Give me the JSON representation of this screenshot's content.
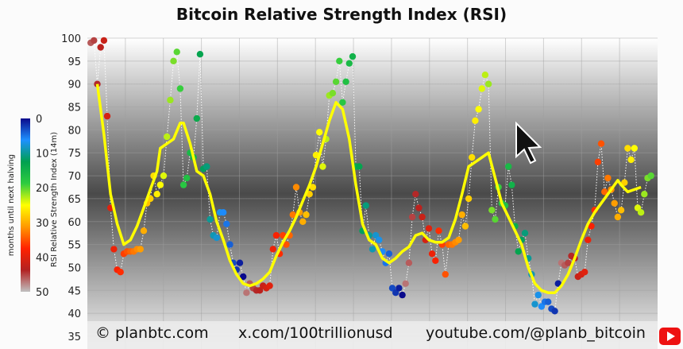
{
  "chart_data": {
    "type": "scatter",
    "title": "Bitcoin Relative Strength Index (RSI)",
    "ylabel": "RSI Relative Strength Index (14m)",
    "ylim": [
      35,
      100
    ],
    "yticks": [
      35,
      40,
      45,
      50,
      55,
      60,
      65,
      70,
      75,
      80,
      85,
      90,
      95,
      100
    ],
    "colorbar": {
      "label": "months until next halving",
      "ticks": [
        0,
        10,
        20,
        30,
        40,
        50
      ],
      "range": [
        0,
        50
      ],
      "colors": [
        "#0a0a8c",
        "#1e90ff",
        "#00a050",
        "#2ecc40",
        "#ffff00",
        "#ff9900",
        "#ff2200",
        "#b22222",
        "#c0c0c0"
      ]
    },
    "series": [
      {
        "kind": "points",
        "points": [
          [
            1,
            99,
            46
          ],
          [
            2,
            99.5,
            45
          ],
          [
            3,
            90,
            44
          ],
          [
            4,
            98,
            43
          ],
          [
            5,
            99.5,
            42
          ],
          [
            6,
            83,
            41
          ],
          [
            7,
            63,
            40
          ],
          [
            8,
            54,
            39
          ],
          [
            9,
            49.5,
            38
          ],
          [
            10,
            49,
            37
          ],
          [
            11,
            53,
            36
          ],
          [
            12,
            53.5,
            35
          ],
          [
            13,
            53.5,
            34
          ],
          [
            14,
            53.5,
            33
          ],
          [
            15,
            54,
            32
          ],
          [
            16,
            54,
            31
          ],
          [
            17,
            58,
            30
          ],
          [
            18,
            64,
            29
          ],
          [
            19,
            65,
            28
          ],
          [
            20,
            70,
            27
          ],
          [
            21,
            66,
            26
          ],
          [
            22,
            68,
            25
          ],
          [
            23,
            70,
            24
          ],
          [
            24,
            78.5,
            23
          ],
          [
            25,
            86.5,
            22
          ],
          [
            26,
            95,
            21
          ],
          [
            27,
            97,
            20
          ],
          [
            28,
            89,
            19
          ],
          [
            29,
            68,
            18
          ],
          [
            30,
            69.5,
            17
          ],
          [
            31,
            75,
            16
          ],
          [
            32,
            74,
            15
          ],
          [
            33,
            82.5,
            14
          ],
          [
            34,
            96.5,
            13
          ],
          [
            35,
            71.5,
            12
          ],
          [
            36,
            72,
            11
          ],
          [
            37,
            60.5,
            10
          ],
          [
            38,
            57,
            9
          ],
          [
            39,
            56.5,
            8
          ],
          [
            40,
            62,
            7
          ],
          [
            41,
            62,
            6
          ],
          [
            42,
            59.5,
            5
          ],
          [
            43,
            55,
            4
          ],
          [
            44,
            51,
            3
          ],
          [
            45,
            49.5,
            2
          ],
          [
            46,
            51,
            1
          ],
          [
            47,
            48,
            0
          ],
          [
            48,
            44.5,
            47
          ],
          [
            49,
            46.5,
            46
          ],
          [
            50,
            45.5,
            45
          ],
          [
            51,
            45,
            44
          ],
          [
            52,
            45,
            43
          ],
          [
            53,
            46,
            42
          ],
          [
            54,
            45.5,
            41
          ],
          [
            55,
            46,
            40
          ],
          [
            56,
            54,
            39
          ],
          [
            57,
            57,
            38
          ],
          [
            58,
            53,
            37
          ],
          [
            59,
            57,
            36
          ],
          [
            60,
            55,
            35
          ],
          [
            61,
            57,
            34
          ],
          [
            62,
            61.5,
            33
          ],
          [
            63,
            67.5,
            32
          ],
          [
            64,
            62,
            31
          ],
          [
            65,
            60,
            30
          ],
          [
            66,
            61.5,
            29
          ],
          [
            67,
            66,
            28
          ],
          [
            68,
            67.5,
            27
          ],
          [
            69,
            74.5,
            26
          ],
          [
            70,
            79.5,
            25
          ],
          [
            71,
            72,
            24
          ],
          [
            72,
            78,
            23
          ],
          [
            73,
            87.5,
            22
          ],
          [
            74,
            88,
            21
          ],
          [
            75,
            90.5,
            20
          ],
          [
            76,
            95,
            19
          ],
          [
            77,
            86,
            18
          ],
          [
            78,
            90.5,
            17
          ],
          [
            79,
            94.5,
            16
          ],
          [
            80,
            96,
            15
          ],
          [
            81,
            72,
            14
          ],
          [
            82,
            72,
            13
          ],
          [
            83,
            58,
            12
          ],
          [
            84,
            63.5,
            11
          ],
          [
            85,
            57,
            10
          ],
          [
            86,
            54,
            9
          ],
          [
            87,
            57,
            8
          ],
          [
            88,
            56,
            7
          ],
          [
            89,
            53.5,
            6
          ],
          [
            90,
            51,
            5
          ],
          [
            91,
            53,
            4
          ],
          [
            92,
            45.5,
            3
          ],
          [
            93,
            44.5,
            2
          ],
          [
            94,
            45.5,
            1
          ],
          [
            95,
            44,
            0
          ],
          [
            96,
            46.5,
            47
          ],
          [
            97,
            51,
            46
          ],
          [
            98,
            61,
            45
          ],
          [
            99,
            66,
            44
          ],
          [
            100,
            63,
            43
          ],
          [
            101,
            61,
            42
          ],
          [
            102,
            56,
            41
          ],
          [
            103,
            58.5,
            40
          ],
          [
            104,
            53,
            39
          ],
          [
            105,
            51.5,
            38
          ],
          [
            106,
            58,
            37
          ],
          [
            107,
            55,
            36
          ],
          [
            108,
            48.5,
            35
          ],
          [
            109,
            55,
            34
          ],
          [
            110,
            55,
            33
          ],
          [
            111,
            55.5,
            32
          ],
          [
            112,
            56,
            31
          ],
          [
            113,
            61.5,
            30
          ],
          [
            114,
            59,
            29
          ],
          [
            115,
            65,
            28
          ],
          [
            116,
            74,
            27
          ],
          [
            117,
            82,
            26
          ],
          [
            118,
            84.5,
            25
          ],
          [
            119,
            89,
            24
          ],
          [
            120,
            92,
            23
          ],
          [
            121,
            90,
            22
          ],
          [
            122,
            62.5,
            21
          ],
          [
            123,
            60.5,
            20
          ],
          [
            124,
            67.5,
            19
          ],
          [
            125,
            64,
            18
          ],
          [
            126,
            63.5,
            17
          ],
          [
            127,
            72,
            16
          ],
          [
            128,
            68,
            15
          ],
          [
            129,
            59,
            14
          ],
          [
            130,
            53.5,
            13
          ],
          [
            131,
            56,
            12
          ],
          [
            132,
            57.5,
            11
          ],
          [
            133,
            52,
            10
          ],
          [
            134,
            48.5,
            9
          ],
          [
            135,
            42,
            8
          ],
          [
            136,
            44,
            7
          ],
          [
            137,
            41.5,
            6
          ],
          [
            138,
            42.5,
            5
          ],
          [
            139,
            42.5,
            4
          ],
          [
            140,
            41,
            3
          ],
          [
            141,
            40.5,
            2
          ],
          [
            142,
            46.5,
            1
          ],
          [
            143,
            51,
            47
          ],
          [
            144,
            50.5,
            46
          ],
          [
            145,
            51,
            45
          ],
          [
            146,
            52.5,
            44
          ],
          [
            147,
            52,
            43
          ],
          [
            148,
            48,
            42
          ],
          [
            149,
            48.5,
            41
          ],
          [
            150,
            49,
            40
          ],
          [
            151,
            56,
            39
          ],
          [
            152,
            59,
            38
          ],
          [
            153,
            62.5,
            37
          ],
          [
            154,
            73,
            36
          ],
          [
            155,
            77,
            35
          ],
          [
            156,
            66.5,
            34
          ],
          [
            157,
            69.5,
            33
          ],
          [
            158,
            67,
            32
          ],
          [
            159,
            64,
            31
          ],
          [
            160,
            61,
            30
          ],
          [
            161,
            62.5,
            29
          ],
          [
            162,
            68.5,
            28
          ],
          [
            163,
            76,
            27
          ],
          [
            164,
            73.5,
            26
          ],
          [
            165,
            76,
            25
          ],
          [
            166,
            63,
            24
          ],
          [
            167,
            62,
            23
          ],
          [
            168,
            66,
            22
          ],
          [
            169,
            69.5,
            21
          ],
          [
            170,
            70,
            20
          ]
        ]
      },
      {
        "kind": "moving-average",
        "color": "#ffff00",
        "points": [
          [
            3,
            90
          ],
          [
            5,
            79
          ],
          [
            7,
            66
          ],
          [
            9,
            59.5
          ],
          [
            11,
            55
          ],
          [
            13,
            56
          ],
          [
            15,
            59
          ],
          [
            17,
            63
          ],
          [
            19,
            67
          ],
          [
            21,
            71
          ],
          [
            22,
            76
          ],
          [
            24,
            77
          ],
          [
            26,
            78
          ],
          [
            28,
            81.5
          ],
          [
            29,
            81.5
          ],
          [
            31,
            77
          ],
          [
            33,
            71
          ],
          [
            35,
            70
          ],
          [
            37,
            66
          ],
          [
            39,
            60
          ],
          [
            41,
            56
          ],
          [
            43,
            51.5
          ],
          [
            45,
            48.5
          ],
          [
            47,
            46.5
          ],
          [
            49,
            46
          ],
          [
            51,
            46.5
          ],
          [
            53,
            47.5
          ],
          [
            55,
            49
          ],
          [
            57,
            52.5
          ],
          [
            59,
            55.5
          ],
          [
            61,
            58
          ],
          [
            63,
            61
          ],
          [
            65,
            64.5
          ],
          [
            67,
            68
          ],
          [
            69,
            72
          ],
          [
            71,
            77
          ],
          [
            73,
            82
          ],
          [
            75,
            86
          ],
          [
            77,
            84.5
          ],
          [
            79,
            78
          ],
          [
            81,
            68
          ],
          [
            83,
            59.5
          ],
          [
            85,
            56
          ],
          [
            87,
            55
          ],
          [
            89,
            52
          ],
          [
            91,
            51
          ],
          [
            93,
            52
          ],
          [
            95,
            53.5
          ],
          [
            97,
            54.5
          ],
          [
            99,
            57
          ],
          [
            101,
            57.5
          ],
          [
            103,
            56
          ],
          [
            105,
            55.5
          ],
          [
            107,
            55.5
          ],
          [
            109,
            56.5
          ],
          [
            111,
            60.5
          ],
          [
            113,
            66
          ],
          [
            115,
            72
          ],
          [
            117,
            73
          ],
          [
            119,
            74
          ],
          [
            121,
            75
          ],
          [
            123,
            69.5
          ],
          [
            125,
            64
          ],
          [
            127,
            61
          ],
          [
            129,
            58
          ],
          [
            131,
            55
          ],
          [
            133,
            50
          ],
          [
            135,
            46.5
          ],
          [
            137,
            45
          ],
          [
            139,
            44.5
          ],
          [
            141,
            44.5
          ],
          [
            143,
            46
          ],
          [
            145,
            48.5
          ],
          [
            147,
            52
          ],
          [
            149,
            56
          ],
          [
            151,
            59.5
          ],
          [
            153,
            62
          ],
          [
            155,
            64
          ],
          [
            157,
            66
          ],
          [
            159,
            68
          ],
          [
            160,
            69
          ],
          [
            161,
            68
          ],
          [
            163,
            66.5
          ],
          [
            165,
            67
          ],
          [
            167,
            67.5
          ]
        ]
      }
    ]
  },
  "footer": {
    "site": "© planbtc.com",
    "x": "x.com/100trillionusd",
    "youtube": "youtube.com/@planb_bitcoin"
  },
  "icons": {
    "cursor": "mouse-pointer-icon",
    "youtube": "youtube-subscribe-icon"
  }
}
